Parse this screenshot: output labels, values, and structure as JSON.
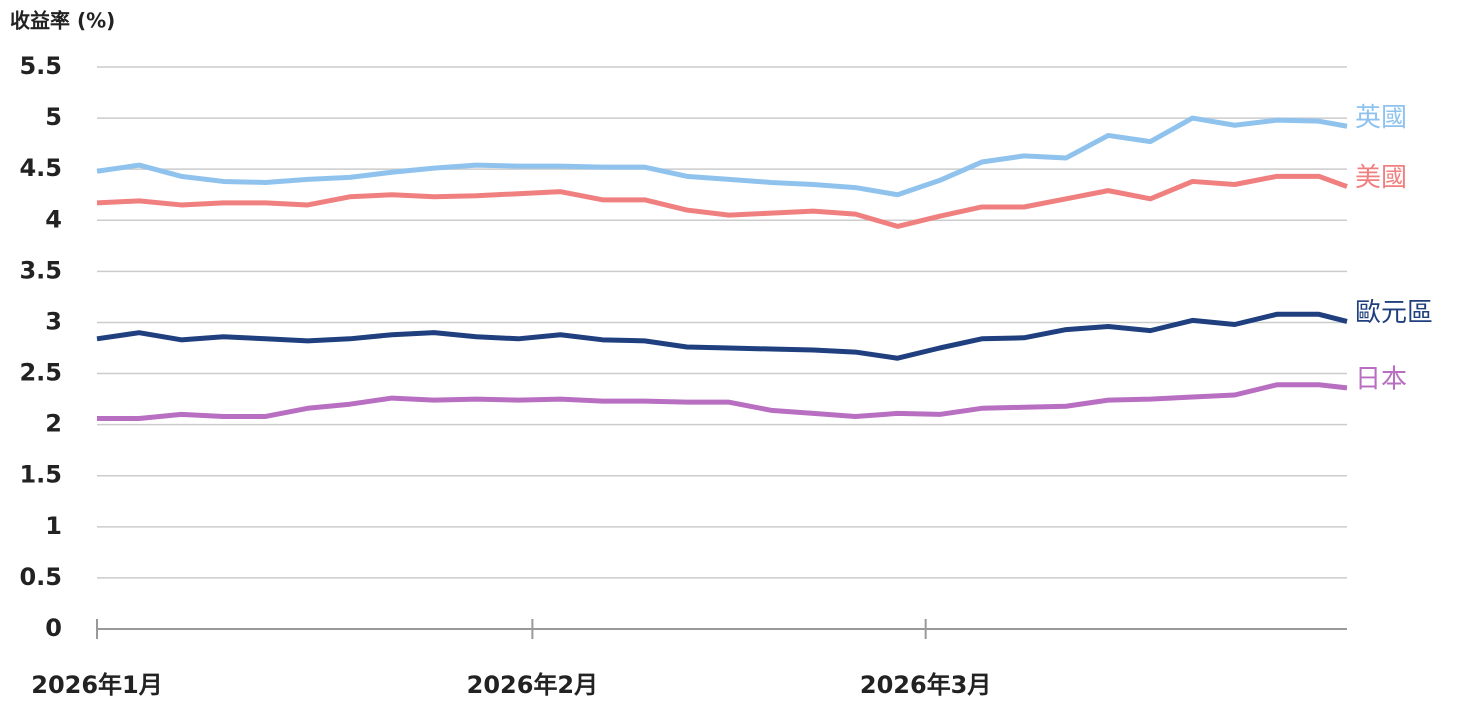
{
  "chart_data": {
    "type": "line",
    "y_label": "收益率 (%)",
    "x": [
      0,
      3,
      6,
      9,
      12,
      15,
      18,
      21,
      24,
      27,
      30,
      33,
      36,
      39,
      42,
      45,
      48,
      51,
      54,
      57,
      60,
      63,
      66,
      69,
      72,
      75,
      78,
      81,
      84,
      87,
      89
    ],
    "xlim": [
      0,
      89
    ],
    "xticks": [
      {
        "value": 0,
        "label": "2026年1月"
      },
      {
        "value": 31,
        "label": "2026年2月"
      },
      {
        "value": 59,
        "label": "2026年3月"
      }
    ],
    "ylim": [
      0,
      5.5
    ],
    "yticks": [
      0,
      0.5,
      1,
      1.5,
      2,
      2.5,
      3,
      3.5,
      4,
      4.5,
      5,
      5.5
    ],
    "grid": true,
    "series": [
      {
        "name": "英國",
        "color": "#8fc3ee",
        "values": [
          4.48,
          4.54,
          4.43,
          4.38,
          4.37,
          4.4,
          4.42,
          4.47,
          4.51,
          4.54,
          4.53,
          4.53,
          4.52,
          4.52,
          4.43,
          4.4,
          4.37,
          4.35,
          4.32,
          4.25,
          4.39,
          4.57,
          4.63,
          4.61,
          4.83,
          4.77,
          5.0,
          4.93,
          4.98,
          4.97,
          4.92
        ]
      },
      {
        "name": "美國",
        "color": "#f08080",
        "values": [
          4.17,
          4.19,
          4.15,
          4.17,
          4.17,
          4.15,
          4.23,
          4.25,
          4.23,
          4.24,
          4.26,
          4.28,
          4.2,
          4.2,
          4.1,
          4.05,
          4.07,
          4.09,
          4.06,
          3.94,
          4.04,
          4.13,
          4.13,
          4.21,
          4.29,
          4.21,
          4.38,
          4.35,
          4.43,
          4.43,
          4.33
        ]
      },
      {
        "name": "歐元區",
        "color": "#1f3f7f",
        "values": [
          2.84,
          2.9,
          2.83,
          2.86,
          2.84,
          2.82,
          2.84,
          2.88,
          2.9,
          2.86,
          2.84,
          2.88,
          2.83,
          2.82,
          2.76,
          2.75,
          2.74,
          2.73,
          2.71,
          2.65,
          2.75,
          2.84,
          2.85,
          2.93,
          2.96,
          2.92,
          3.02,
          2.98,
          3.08,
          3.08,
          3.01
        ]
      },
      {
        "name": "日本",
        "color": "#b86fc2",
        "values": [
          2.06,
          2.06,
          2.1,
          2.08,
          2.08,
          2.16,
          2.2,
          2.26,
          2.24,
          2.25,
          2.24,
          2.25,
          2.23,
          2.23,
          2.22,
          2.22,
          2.14,
          2.11,
          2.08,
          2.11,
          2.1,
          2.16,
          2.17,
          2.18,
          2.24,
          2.25,
          2.27,
          2.29,
          2.39,
          2.39,
          2.36
        ]
      }
    ]
  }
}
